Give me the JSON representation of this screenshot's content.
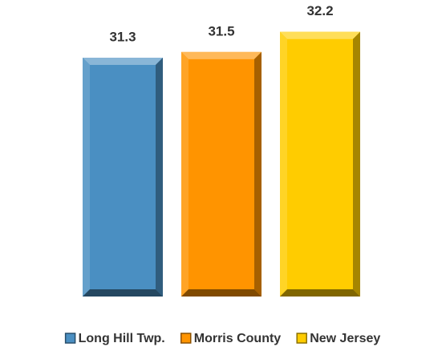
{
  "chart_data": {
    "type": "bar",
    "series": [
      {
        "name": "Long Hill Twp.",
        "color": "#4a8fc2",
        "values": [
          31.3
        ]
      },
      {
        "name": "Morris County",
        "color": "#ff9400",
        "values": [
          31.5
        ]
      },
      {
        "name": "New Jersey",
        "color": "#ffcc00",
        "values": [
          32.2
        ]
      }
    ],
    "ylim": [
      23,
      33
    ],
    "legend": "bottom"
  }
}
